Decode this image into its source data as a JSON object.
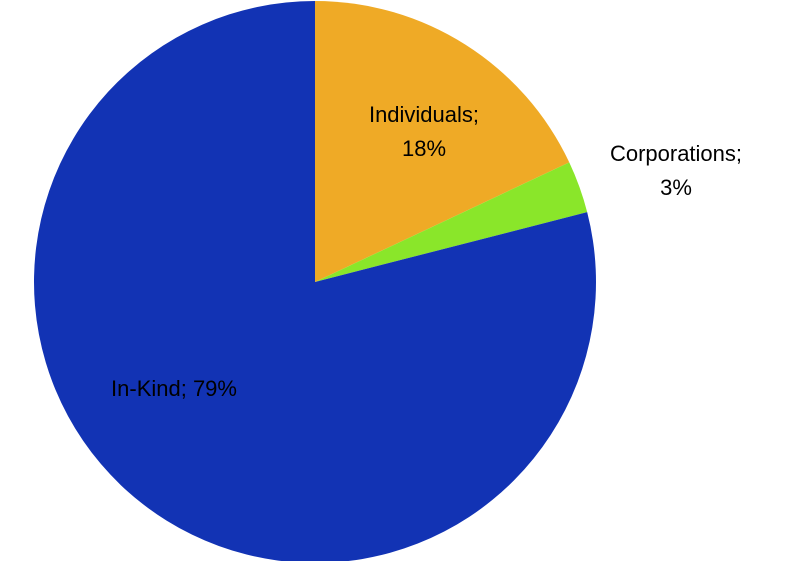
{
  "chart_data": {
    "type": "pie",
    "start_angle_deg": 0,
    "direction": "clockwise",
    "slices": [
      {
        "label": "Individuals",
        "value": 18,
        "color": "#EFAA26",
        "label_lines": [
          "Individuals;",
          "18%"
        ]
      },
      {
        "label": "Corporations",
        "value": 3,
        "color": "#8AE62A",
        "label_lines": [
          "Corporations;",
          "3%"
        ]
      },
      {
        "label": "In-Kind",
        "value": 79,
        "color": "#1233B4",
        "label_lines": [
          "In-Kind; 79%"
        ]
      }
    ],
    "title": "",
    "legend": "none"
  }
}
